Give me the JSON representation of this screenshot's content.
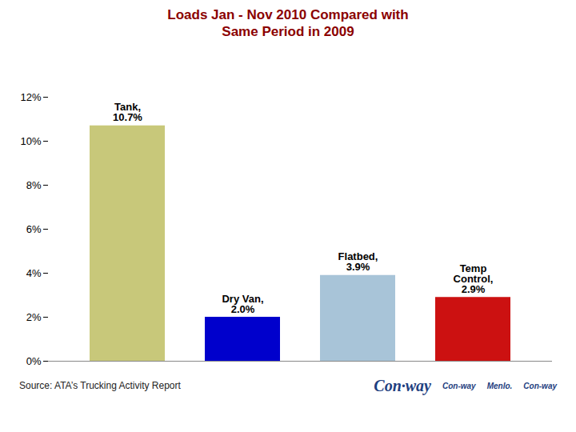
{
  "chart_data": {
    "type": "bar",
    "title": "Loads Jan - Nov 2010 Compared with\nSame Period in 2009",
    "categories": [
      "Tank,",
      "Dry Van,",
      "Flatbed,",
      "Temp\nControl,"
    ],
    "values": [
      10.7,
      2.0,
      3.9,
      2.9
    ],
    "value_labels": [
      "10.7%",
      "2.0%",
      "3.9%",
      "2.9%"
    ],
    "data_labels": true,
    "colors": [
      "#C8C87A",
      "#0000CC",
      "#A8C4D8",
      "#CC1111"
    ],
    "ylim": [
      0,
      12
    ],
    "yticks": [
      {
        "value": 0,
        "label": "0%"
      },
      {
        "value": 2,
        "label": "2%"
      },
      {
        "value": 4,
        "label": "4%"
      },
      {
        "value": 6,
        "label": "6%"
      },
      {
        "value": 8,
        "label": "8%"
      },
      {
        "value": 10,
        "label": "10%"
      },
      {
        "value": 12,
        "label": "12%"
      }
    ],
    "grid": false,
    "tick_labels": "y",
    "annotations": [
      "Source: ATA’s Trucking Activity Report",
      "Con·way",
      "Con-way",
      "Menlo.",
      "Con-way"
    ]
  }
}
